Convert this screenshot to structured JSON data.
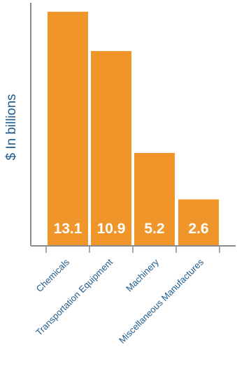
{
  "chart_data": {
    "type": "bar",
    "categories": [
      "Chemicals",
      "Transportation Equipment",
      "Machinery",
      "Miscellaneous Manufactures"
    ],
    "values": [
      13.1,
      10.9,
      5.2,
      2.6
    ],
    "data_labels": [
      "13.1",
      "10.9",
      "5.2",
      "2.6"
    ],
    "title": "",
    "xlabel": "",
    "ylabel": "$ In billions",
    "ylim": [
      0,
      13.6
    ],
    "grid": false,
    "legend": "none",
    "bar_color": "#f0952a",
    "axis_color": "#8a8a8a",
    "label_color": "#1f5b8c",
    "data_label_color": "#ffffff"
  }
}
